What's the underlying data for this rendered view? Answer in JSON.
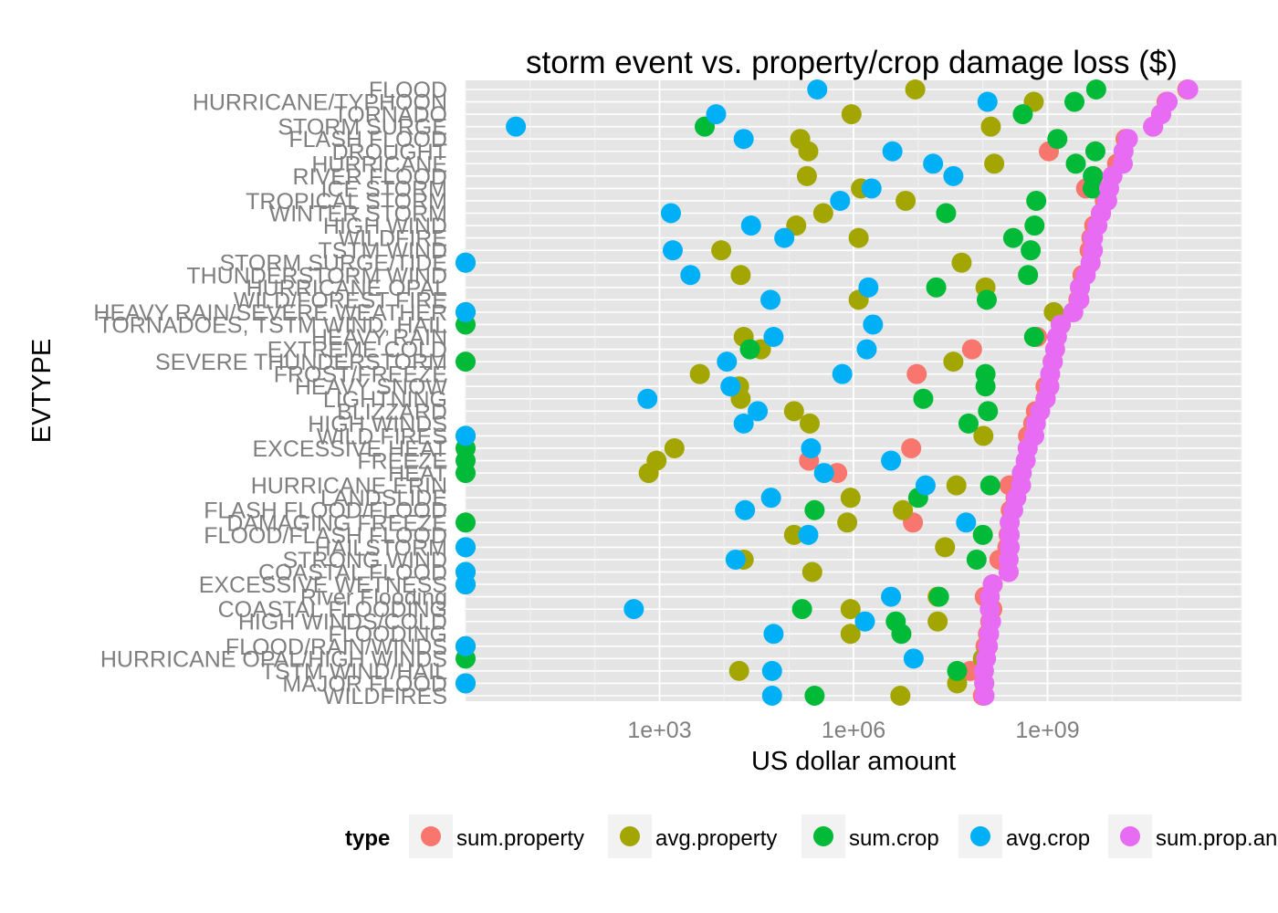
{
  "chart_data": {
    "type": "scatter",
    "title": "storm event vs. property/crop damage loss ($)",
    "xlabel": "US dollar amount",
    "ylabel": "EVTYPE",
    "x_scale": "log10",
    "xlim": [
      1,
      1000000000000.0
    ],
    "x_ticks": [
      {
        "value": 1000,
        "label": "1e+03"
      },
      {
        "value": 1000000,
        "label": "1e+06"
      },
      {
        "value": 1000000000,
        "label": "1e+09"
      }
    ],
    "grid": true,
    "legend": {
      "title": "type",
      "position": "bottom"
    },
    "categories": [
      "FLOOD",
      "HURRICANE/TYPHOON",
      "TORNADO",
      "STORM SURGE",
      "FLASH FLOOD",
      "DROUGHT",
      "HURRICANE",
      "RIVER FLOOD",
      "ICE STORM",
      "TROPICAL STORM",
      "WINTER STORM",
      "HIGH WIND",
      "WILDFIRE",
      "TSTM WIND",
      "STORM SURGE/TIDE",
      "THUNDERSTORM WIND",
      "HURRICANE OPAL",
      "WILD/FOREST FIRE",
      "HEAVY RAIN/SEVERE WEATHER",
      "TORNADOES, TSTM WIND, HAIL",
      "HEAVY RAIN",
      "EXTREME COLD",
      "SEVERE THUNDERSTORM",
      "FROST/FREEZE",
      "HEAVY SNOW",
      "LIGHTNING",
      "BLIZZARD",
      "HIGH WINDS",
      "WILD FIRES",
      "EXCESSIVE HEAT",
      "FREEZE",
      "HEAT",
      "HURRICANE ERIN",
      "LANDSLIDE",
      "FLASH FLOOD/FLOOD",
      "DAMAGING FREEZE",
      "FLOOD/FLASH FLOOD",
      "HAILSTORM",
      "STRONG WIND",
      "COASTAL FLOOD",
      "EXCESSIVE WETNESS",
      "River Flooding",
      "COASTAL FLOODING",
      "HIGH WINDS/COLD",
      "FLOODING",
      "FLOOD/RAIN/WINDS",
      "HURRICANE OPAL/HIGH WINDS",
      "TSTM WIND/HAIL",
      "MAJOR FLOOD",
      "WILDFIRES"
    ],
    "series": [
      {
        "name": "sum.property",
        "color": "#F8766D",
        "values": [
          145000000000.0,
          69300000000.0,
          56900000000.0,
          43000000000.0,
          16100000000.0,
          1050000000.0,
          11900000000.0,
          5120000000.0,
          3940000000.0,
          7700000000.0,
          6690000000.0,
          5270000000.0,
          4770000000.0,
          4480000000.0,
          4640000000.0,
          3480000000.0,
          3170000000.0,
          3000000000.0,
          2500000000.0,
          1600000000.0,
          690000000.0,
          68000000.0,
          1200000000.0,
          9500000.0,
          930000000.0,
          930000000.0,
          660000000.0,
          600000000.0,
          500000000.0,
          7800000.0,
          205000.0,
          560000.0,
          258000000.0,
          320000000.0,
          270000000.0,
          8300000.0,
          250000000.0,
          240000000.0,
          180000000.0,
          250000000.0,
          142000000.0,
          107000000.0,
          140000000.0,
          130000000.0,
          120000000.0,
          110000000.0,
          110000000.0,
          64000000.0,
          105000000.0,
          100000000.0
        ]
      },
      {
        "name": "avg.property",
        "color": "#A3A500",
        "values": [
          9000000.0,
          613000000.0,
          930000.0,
          133000000.0,
          150000.0,
          200000.0,
          150000000.0,
          190000.0,
          1300000.0,
          6400000.0,
          340000.0,
          130000.0,
          1200000.0,
          9000.0,
          47000000.0,
          18000.0,
          110000000.0,
          1200000.0,
          1250000000.0,
          1600000000.0,
          20000.0,
          37000.0,
          35000000.0,
          4200.0,
          17000.0,
          18000.0,
          120000.0,
          210000.0,
          102000000.0,
          1700.0,
          900.0,
          680.0,
          39000000.0,
          900000.0,
          5800000.0,
          800000.0,
          120000.0,
          26000000.0,
          20000.0,
          230000.0,
          1.0,
          20000000.0,
          900000.0,
          20000000.0,
          900000.0,
          1.0,
          100000000.0,
          17000.0,
          40000000.0,
          5300000.0
        ]
      },
      {
        "name": "sum.crop",
        "color": "#00BA38",
        "values": [
          5660000000.0,
          2610000000.0,
          415000000.0,
          5000.0,
          1420000000.0,
          5500000000.0,
          2740000000.0,
          5030000000.0,
          5000000000.0,
          670000000.0,
          27000000.0,
          630000000.0,
          295000000.0,
          550000000.0,
          1.0,
          500000000.0,
          19000000.0,
          115000000.0,
          1.0,
          1.0,
          620000000.0,
          25000.0,
          1.0,
          110000000.0,
          110000000.0,
          12000000.0,
          120000000.0,
          60000000.0,
          1.0,
          1.0,
          1.0,
          1.0,
          130000000.0,
          10000000.0,
          250000.0,
          1.0,
          100000000.0,
          1.0,
          80000000.0,
          1.0,
          1.0,
          21000000.0,
          160000.0,
          4500000.0,
          5500000.0,
          1.0,
          1.0,
          40000000.0,
          1.0,
          250000.0
        ]
      },
      {
        "name": "avg.crop",
        "color": "#00B0F6",
        "values": [
          275000.0,
          118000000.0,
          7500.0,
          6.0,
          20000.0,
          4000000.0,
          17000000.0,
          35000000.0,
          1900000.0,
          620000.0,
          1500.0,
          26000.0,
          85000.0,
          1600.0,
          1.0,
          3000.0,
          1700000.0,
          52000.0,
          1.0,
          2000000.0,
          58000.0,
          1600000.0,
          11000.0,
          670000.0,
          12500.0,
          650.0,
          33000.0,
          20000.0,
          1.0,
          220000.0,
          3800000.0,
          350000.0,
          13000000.0,
          53000.0,
          21000.0,
          55000000.0,
          200000.0,
          1.0,
          15000.0,
          1.0,
          1.0,
          3800000.0,
          400.0,
          1500000.0,
          58000.0,
          1.0,
          8500000.0,
          55000.0,
          1.0,
          55000.0
        ]
      },
      {
        "name": "sum.prop.and.crop",
        "color": "#E76BF3",
        "values": [
          150000000000.0,
          72000000000.0,
          57400000000.0,
          43000000000.0,
          17500000000.0,
          15000000000.0,
          14600000000.0,
          10100000000.0,
          8970000000.0,
          8380000000.0,
          6720000000.0,
          5910000000.0,
          5060000000.0,
          5040000000.0,
          4640000000.0,
          3900000000.0,
          3190000000.0,
          3110000000.0,
          2500000000.0,
          1600000000.0,
          1400000000.0,
          1310000000.0,
          1210000000.0,
          1100000000.0,
          1070000000.0,
          940000000.0,
          770000000.0,
          660000000.0,
          624000000.0,
          494000000.0,
          460000000.0,
          400000000.0,
          390000000.0,
          330000000.0,
          295000000.0,
          260000000.0,
          260000000.0,
          260000000.0,
          250000000.0,
          250000000.0,
          142000000.0,
          128000000.0,
          128000000.0,
          134000000.0,
          125000000.0,
          120000000.0,
          112000000.0,
          104000000.0,
          105000000.0,
          106000000.0
        ]
      }
    ]
  }
}
